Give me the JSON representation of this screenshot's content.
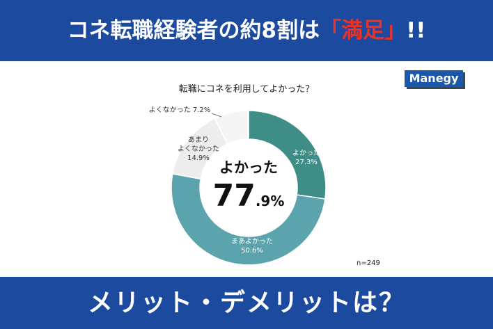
{
  "header": {
    "title_before": "コネ転職経験者の約8割は",
    "title_highlight": "「満足」",
    "title_after": "!!"
  },
  "logo": "Manegy",
  "chart_data": {
    "type": "donut",
    "title": "転職にコネを利用してよかった？",
    "categories": [
      "よかった",
      "まあよかった",
      "あまり\nよくなかった",
      "よくなかった"
    ],
    "values": [
      27.3,
      50.6,
      14.9,
      7.2
    ],
    "value_labels": [
      "27.3%",
      "50.6%",
      "14.9%",
      "7.2%"
    ],
    "colors": [
      "#3f8d87",
      "#5ca4ad",
      "#ededed",
      "#f5f5f5"
    ],
    "center_label": "よかった",
    "center_value": "77",
    "center_value_suffix": ".9%",
    "note": "n=249"
  },
  "footer": {
    "title": "メリット・デメリットは？"
  }
}
